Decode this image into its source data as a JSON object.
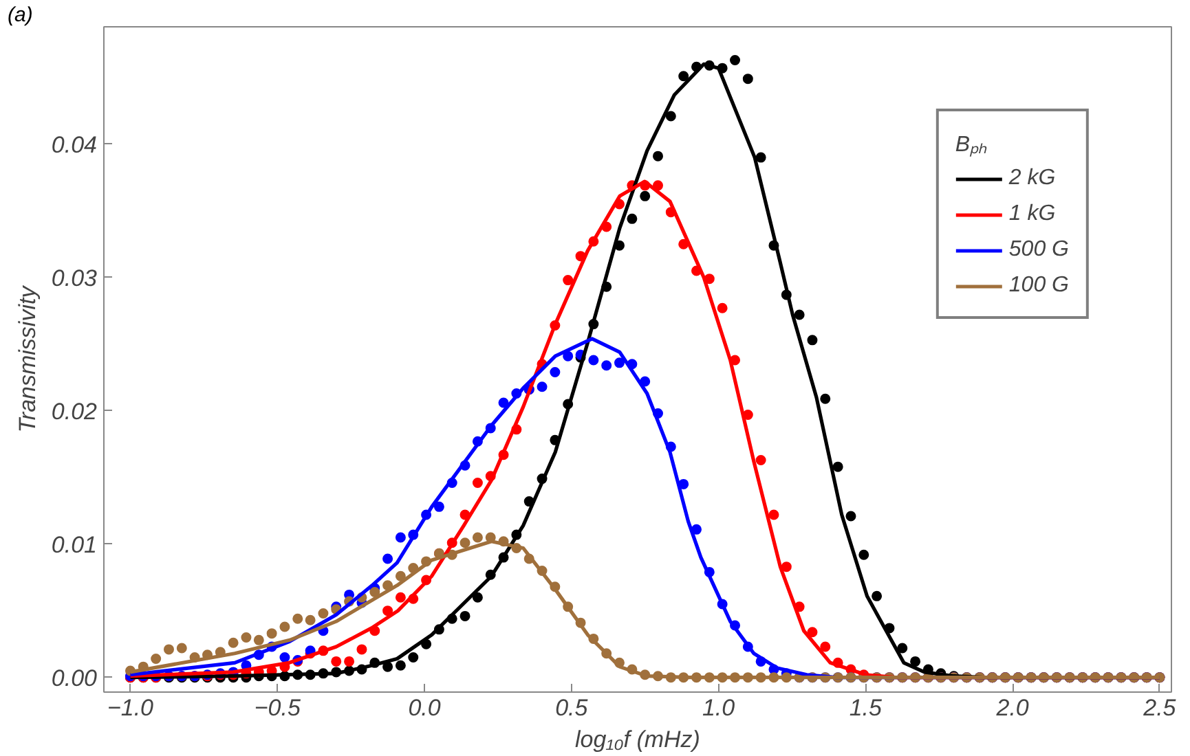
{
  "chart_data": {
    "type": "scatter",
    "title": "(a)",
    "xlabel": "log₁₀f (mHz)",
    "ylabel": "Transmissivity",
    "legend_title": "Bₚₕ",
    "legend": "top right",
    "grid": false,
    "xlim": [
      -1.09,
      2.54
    ],
    "ylim": [
      -0.0011,
      0.0488
    ],
    "xticks": [
      {
        "value": -1.0,
        "label": "−1.0"
      },
      {
        "value": -0.5,
        "label": "−0.5"
      },
      {
        "value": 0.0,
        "label": "0.0"
      },
      {
        "value": 0.5,
        "label": "0.5"
      },
      {
        "value": 1.0,
        "label": "1.0"
      },
      {
        "value": 1.5,
        "label": "1.5"
      },
      {
        "value": 2.0,
        "label": "2.0"
      },
      {
        "value": 2.5,
        "label": "2.5"
      }
    ],
    "yticks": [
      {
        "value": 0,
        "label": "0.00"
      },
      {
        "value": 0.01,
        "label": "0.01"
      },
      {
        "value": 0.02,
        "label": "0.02"
      },
      {
        "value": 0.03,
        "label": "0.03"
      },
      {
        "value": 0.04,
        "label": "0.04"
      }
    ],
    "x": [
      -1.0,
      -0.956,
      -0.913,
      -0.869,
      -0.825,
      -0.781,
      -0.738,
      -0.694,
      -0.65,
      -0.606,
      -0.563,
      -0.519,
      -0.475,
      -0.431,
      -0.388,
      -0.344,
      -0.3,
      -0.256,
      -0.213,
      -0.169,
      -0.125,
      -0.081,
      -0.038,
      0.006,
      0.05,
      0.094,
      0.138,
      0.181,
      0.225,
      0.269,
      0.313,
      0.356,
      0.4,
      0.444,
      0.488,
      0.531,
      0.575,
      0.619,
      0.663,
      0.706,
      0.75,
      0.794,
      0.838,
      0.881,
      0.925,
      0.969,
      1.013,
      1.056,
      1.1,
      1.144,
      1.188,
      1.231,
      1.275,
      1.319,
      1.363,
      1.406,
      1.45,
      1.494,
      1.538,
      1.581,
      1.625,
      1.669,
      1.713,
      1.756,
      1.8,
      1.844,
      1.888,
      1.931,
      1.975,
      2.019,
      2.063,
      2.106,
      2.15,
      2.194,
      2.238,
      2.281,
      2.325,
      2.369,
      2.413,
      2.456,
      2.5
    ],
    "series": [
      {
        "marker": "circle",
        "color": "#000000",
        "values": [
          0,
          0,
          0,
          0,
          0,
          0,
          0,
          0,
          0,
          0,
          0.0001,
          0.0001,
          0.0001,
          0.0002,
          0.0002,
          0.0003,
          0.0004,
          0.0005,
          0.0006,
          0.0011,
          0.0008,
          0.0009,
          0.0015,
          0.0025,
          0.0036,
          0.0044,
          0.0046,
          0.006,
          0.0077,
          0.009,
          0.0107,
          0.0132,
          0.0149,
          0.0178,
          0.0205,
          0.024,
          0.0265,
          0.0293,
          0.0324,
          0.0344,
          0.0361,
          0.0391,
          0.0421,
          0.0451,
          0.0458,
          0.0459,
          0.0457,
          0.0463,
          0.0449,
          0.039,
          0.0324,
          0.0287,
          0.0272,
          0.0253,
          0.0209,
          0.0158,
          0.0121,
          0.0092,
          0.0061,
          0.0037,
          0.0022,
          0.0012,
          0.0006,
          0.0003,
          0.0001,
          0,
          0,
          0,
          0,
          0,
          0,
          0,
          0,
          0,
          0,
          0,
          0,
          0,
          0,
          0,
          0
        ]
      },
      {
        "marker": "circle",
        "color": "#ff0000",
        "values": [
          0,
          0,
          0,
          0.0001,
          0.0001,
          0.0001,
          0.0001,
          0.0002,
          0.0002,
          0.0003,
          0.0004,
          0.0005,
          0.0008,
          0.0012,
          0.0018,
          0.002,
          0.0012,
          0.0012,
          0.0021,
          0.0035,
          0.005,
          0.006,
          0.0059,
          0.0073,
          0.0093,
          0.0101,
          0.0122,
          0.0146,
          0.0151,
          0.0167,
          0.0186,
          0.0216,
          0.0235,
          0.0264,
          0.0298,
          0.0316,
          0.0327,
          0.0338,
          0.0355,
          0.0369,
          0.0369,
          0.0369,
          0.0349,
          0.0325,
          0.0305,
          0.0299,
          0.0277,
          0.0238,
          0.0197,
          0.0163,
          0.0122,
          0.0083,
          0.0053,
          0.0034,
          0.0023,
          0.0011,
          0.0006,
          0.0002,
          0,
          0,
          0,
          0,
          0,
          0,
          0,
          0,
          0,
          0,
          0,
          0,
          0,
          0,
          0,
          0,
          0,
          0,
          0,
          0,
          0,
          0,
          0
        ]
      },
      {
        "marker": "circle",
        "color": "#0000ff",
        "values": [
          0.0001,
          0.0001,
          0.0001,
          0.0001,
          0.0001,
          0.0001,
          0.0002,
          0.0003,
          0.0004,
          0.0009,
          0.0017,
          0.0023,
          0.0015,
          0.0013,
          0.002,
          0.0035,
          0.0053,
          0.0062,
          0.0056,
          0.0067,
          0.0089,
          0.0105,
          0.0107,
          0.0122,
          0.0128,
          0.0146,
          0.0159,
          0.0177,
          0.0187,
          0.0206,
          0.0213,
          0.0216,
          0.0218,
          0.0229,
          0.0241,
          0.0242,
          0.0238,
          0.0234,
          0.0236,
          0.0235,
          0.0222,
          0.0198,
          0.0173,
          0.0145,
          0.0111,
          0.0079,
          0.0055,
          0.0039,
          0.0023,
          0.0012,
          0.0006,
          0.0003,
          0,
          0,
          0,
          0,
          0,
          0,
          0,
          0,
          0,
          0,
          0,
          0,
          0,
          0,
          0,
          0,
          0,
          0,
          0,
          0,
          0,
          0,
          0,
          0,
          0,
          0,
          0,
          0,
          0
        ]
      },
      {
        "marker": "circle",
        "color": "#a0703c",
        "values": [
          0.0005,
          0.0008,
          0.0014,
          0.0021,
          0.0022,
          0.0015,
          0.0017,
          0.0019,
          0.0026,
          0.003,
          0.0028,
          0.0033,
          0.0038,
          0.0044,
          0.0043,
          0.0048,
          0.0051,
          0.0057,
          0.006,
          0.0064,
          0.0069,
          0.0076,
          0.0082,
          0.0087,
          0.0093,
          0.0092,
          0.0101,
          0.0105,
          0.0105,
          0.0102,
          0.0097,
          0.0089,
          0.008,
          0.0068,
          0.0053,
          0.0041,
          0.0029,
          0.0018,
          0.0011,
          0.0006,
          0.0002,
          0.0001,
          0,
          0,
          0,
          0,
          0,
          0,
          0,
          0,
          0,
          0,
          0,
          0,
          0,
          0,
          0,
          0,
          0,
          0,
          0,
          0,
          0,
          0,
          0,
          0,
          0,
          0,
          0,
          0,
          0,
          0,
          0,
          0,
          0,
          0,
          0,
          0,
          0,
          0,
          0
        ]
      },
      {
        "type": "line",
        "marker": "none",
        "name": "2 kG",
        "color": "#000000",
        "x": [
          -1.0,
          -0.65,
          -0.3,
          -0.178,
          -0.093,
          0.025,
          0.228,
          0.336,
          0.445,
          0.555,
          0.664,
          0.757,
          0.85,
          0.95,
          1.0,
          1.123,
          1.209,
          1.252,
          1.333,
          1.419,
          1.505,
          1.63,
          1.7,
          1.8,
          1.9,
          2.5
        ],
        "values": [
          0,
          0.0001,
          0.0003,
          0.0009,
          0.0014,
          0.0032,
          0.0076,
          0.0114,
          0.0169,
          0.0251,
          0.0337,
          0.0395,
          0.0437,
          0.046,
          0.0457,
          0.039,
          0.0312,
          0.0272,
          0.021,
          0.0122,
          0.0061,
          0.0011,
          0.0004,
          0.0001,
          0,
          0
        ]
      },
      {
        "type": "line",
        "marker": "none",
        "name": "1 kG",
        "color": "#ff0000",
        "x": [
          -1.0,
          -0.65,
          -0.46,
          -0.3,
          -0.18,
          -0.09,
          0.025,
          0.134,
          0.228,
          0.336,
          0.445,
          0.555,
          0.664,
          0.749,
          0.835,
          0.95,
          1.04,
          1.12,
          1.21,
          1.29,
          1.38,
          1.5,
          1.6,
          2.5
        ],
        "values": [
          0.0001,
          0.0004,
          0.0011,
          0.0023,
          0.0037,
          0.005,
          0.0076,
          0.0114,
          0.0148,
          0.0203,
          0.0265,
          0.032,
          0.0361,
          0.0372,
          0.0357,
          0.03,
          0.0238,
          0.0162,
          0.0083,
          0.0035,
          0.0011,
          0.0002,
          0,
          0
        ]
      },
      {
        "type": "line",
        "marker": "none",
        "name": "500 G",
        "color": "#0000ff",
        "x": [
          -1.0,
          -0.645,
          -0.458,
          -0.3,
          -0.178,
          -0.093,
          0.025,
          0.228,
          0.336,
          0.445,
          0.57,
          0.664,
          0.757,
          0.835,
          0.897,
          0.94,
          1.04,
          1.12,
          1.2,
          1.3,
          1.4,
          2.5
        ],
        "values": [
          0.0002,
          0.0011,
          0.0027,
          0.0047,
          0.0069,
          0.0086,
          0.0128,
          0.0189,
          0.0217,
          0.0241,
          0.0254,
          0.0244,
          0.0213,
          0.0169,
          0.0117,
          0.009,
          0.0042,
          0.0018,
          0.0007,
          0.0002,
          0,
          0
        ]
      },
      {
        "type": "line",
        "marker": "none",
        "name": "100 G",
        "color": "#a0703c",
        "x": [
          -1.0,
          -0.645,
          -0.458,
          -0.3,
          -0.178,
          -0.093,
          0.025,
          0.228,
          0.336,
          0.445,
          0.555,
          0.664,
          0.757,
          0.9,
          2.5
        ],
        "values": [
          0.0004,
          0.0018,
          0.0028,
          0.0042,
          0.0058,
          0.0069,
          0.0088,
          0.0102,
          0.0097,
          0.0066,
          0.0032,
          0.0008,
          0.0001,
          0,
          0
        ]
      }
    ]
  }
}
